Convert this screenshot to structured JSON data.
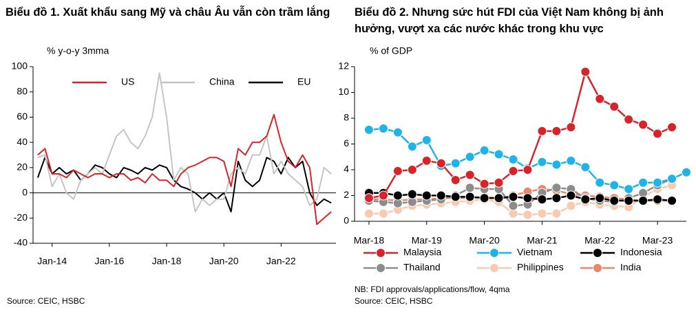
{
  "chart_data": [
    {
      "type": "line",
      "title": "Biểu đồ 1. Xuất khẩu sang Mỹ và châu Âu vẫn còn trầm lắng",
      "y_label": "% y-o-y 3mma",
      "source": "Source: CEIC, HSBC",
      "legend": "top",
      "markers": false,
      "x": [
        "2013-07",
        "2013-10",
        "2014-01",
        "2014-04",
        "2014-07",
        "2014-10",
        "2015-01",
        "2015-04",
        "2015-07",
        "2015-10",
        "2016-01",
        "2016-04",
        "2016-07",
        "2016-10",
        "2017-01",
        "2017-04",
        "2017-07",
        "2017-10",
        "2018-01",
        "2018-04",
        "2018-07",
        "2018-10",
        "2019-01",
        "2019-04",
        "2019-07",
        "2019-10",
        "2020-01",
        "2020-04",
        "2020-07",
        "2020-10",
        "2021-01",
        "2021-04",
        "2021-07",
        "2021-10",
        "2022-01",
        "2022-04",
        "2022-07",
        "2022-10",
        "2023-01",
        "2023-04",
        "2023-07",
        "2023-10"
      ],
      "xlim": [
        "2013-05",
        "2023-12"
      ],
      "xticks": [
        {
          "value": "2014-01",
          "label": "Jan-14"
        },
        {
          "value": "2016-01",
          "label": "Jan-16"
        },
        {
          "value": "2018-01",
          "label": "Jan-18"
        },
        {
          "value": "2020-01",
          "label": "Jan-20"
        },
        {
          "value": "2022-01",
          "label": "Jan-22"
        }
      ],
      "ylim": [
        -40,
        100
      ],
      "yticks": [
        -40,
        -20,
        0,
        20,
        40,
        60,
        80,
        100
      ],
      "series": [
        {
          "name": "US",
          "color": "#d9232a",
          "values": [
            30,
            35,
            15,
            15,
            12,
            18,
            15,
            12,
            15,
            15,
            12,
            15,
            15,
            10,
            12,
            8,
            15,
            10,
            10,
            5,
            15,
            20,
            22,
            25,
            28,
            28,
            25,
            5,
            35,
            30,
            40,
            40,
            45,
            62,
            40,
            25,
            20,
            30,
            20,
            -25,
            -20,
            -15
          ]
        },
        {
          "name": "China",
          "color": "#c4c4c4",
          "values": [
            28,
            30,
            5,
            15,
            0,
            -5,
            10,
            15,
            20,
            15,
            30,
            45,
            50,
            40,
            35,
            45,
            60,
            95,
            60,
            10,
            20,
            15,
            -15,
            -5,
            -10,
            -5,
            -5,
            15,
            20,
            15,
            30,
            30,
            45,
            15,
            25,
            15,
            10,
            5,
            -10,
            -5,
            20,
            15
          ]
        },
        {
          "name": "EU",
          "color": "#000000",
          "values": [
            12,
            28,
            15,
            20,
            15,
            18,
            10,
            15,
            22,
            20,
            15,
            12,
            20,
            18,
            15,
            20,
            18,
            22,
            20,
            10,
            5,
            3,
            0,
            -5,
            0,
            -5,
            0,
            -15,
            25,
            10,
            5,
            10,
            28,
            25,
            15,
            28,
            20,
            25,
            0,
            -10,
            -5,
            -8
          ]
        }
      ]
    },
    {
      "type": "line",
      "title": "Biểu đồ 2. Nhưng sức hút FDI của Việt Nam không bị ảnh hưởng, vượt xa các nước khác trong khu vực",
      "y_label": "% of GDP",
      "note": "NB: FDI approvals/applications/flow, 4qma",
      "source": "Source: CEIC, HSBC",
      "legend": "bottom",
      "markers": true,
      "x": [
        "2018-03",
        "2018-06",
        "2018-09",
        "2018-12",
        "2019-03",
        "2019-06",
        "2019-09",
        "2019-12",
        "2020-03",
        "2020-06",
        "2020-09",
        "2020-12",
        "2021-03",
        "2021-06",
        "2021-09",
        "2021-12",
        "2022-03",
        "2022-06",
        "2022-09",
        "2022-12",
        "2023-03",
        "2023-06",
        "2023-09"
      ],
      "xlim": [
        "2017-12",
        "2023-09"
      ],
      "xticks": [
        {
          "value": "2018-03",
          "label": "Mar-18"
        },
        {
          "value": "2019-03",
          "label": "Mar-19"
        },
        {
          "value": "2020-03",
          "label": "Mar-20"
        },
        {
          "value": "2021-03",
          "label": "Mar-21"
        },
        {
          "value": "2022-03",
          "label": "Mar-22"
        },
        {
          "value": "2023-03",
          "label": "Mar-23"
        }
      ],
      "ylim": [
        0,
        12
      ],
      "yticks": [
        0,
        2,
        4,
        6,
        8,
        10,
        12
      ],
      "series": [
        {
          "name": "Malaysia",
          "color": "#d9232a",
          "values": [
            1.8,
            2.0,
            3.9,
            4.0,
            4.7,
            4.5,
            3.2,
            3.6,
            2.9,
            3.0,
            3.9,
            4.0,
            7.0,
            7.0,
            7.3,
            11.6,
            9.5,
            8.9,
            7.9,
            7.5,
            6.8,
            7.3,
            null
          ]
        },
        {
          "name": "Vietnam",
          "color": "#1fb4e8",
          "values": [
            7.1,
            7.2,
            6.9,
            5.8,
            6.3,
            4.3,
            4.5,
            5.0,
            5.5,
            5.2,
            4.8,
            4.1,
            4.6,
            4.4,
            4.7,
            4.2,
            3.0,
            2.8,
            2.5,
            3.0,
            3.0,
            3.3,
            3.8
          ]
        },
        {
          "name": "Indonesia",
          "color": "#000000",
          "values": [
            2.2,
            2.2,
            2.0,
            2.1,
            2.0,
            2.0,
            1.9,
            1.9,
            1.8,
            1.8,
            1.9,
            1.8,
            1.7,
            1.8,
            2.0,
            1.7,
            1.8,
            1.6,
            1.6,
            1.6,
            1.7,
            1.6,
            null
          ]
        },
        {
          "name": "Thailand",
          "color": "#8c8c8c",
          "values": [
            1.6,
            1.5,
            1.4,
            1.5,
            1.6,
            1.7,
            2.0,
            2.6,
            2.5,
            2.5,
            1.2,
            1.3,
            2.2,
            2.6,
            2.5,
            1.8,
            1.6,
            1.5,
            1.8,
            2.2,
            2.8,
            3.3,
            null
          ]
        },
        {
          "name": "Philippines",
          "color": "#f9c9b0",
          "values": [
            0.6,
            0.6,
            0.9,
            1.2,
            1.3,
            1.4,
            1.5,
            1.6,
            1.7,
            1.5,
            0.6,
            0.5,
            0.6,
            0.6,
            1.2,
            1.5,
            1.3,
            1.2,
            1.1,
            1.9,
            2.5,
            2.8,
            null
          ]
        },
        {
          "name": "India",
          "color": "#e8876a",
          "values": [
            1.7,
            1.7,
            1.6,
            1.7,
            1.7,
            1.8,
            1.8,
            1.8,
            1.9,
            1.8,
            2.0,
            2.3,
            2.5,
            2.4,
            2.1,
            2.0,
            1.9,
            1.8,
            1.7,
            1.6,
            1.6,
            1.6,
            null
          ]
        }
      ]
    }
  ]
}
